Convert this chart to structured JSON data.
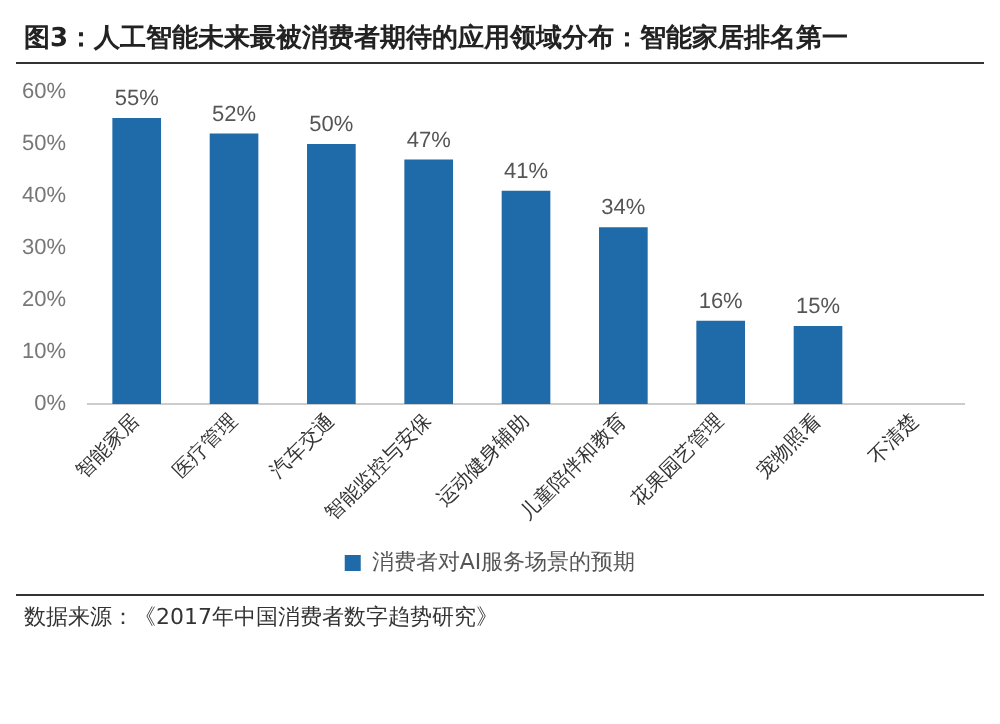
{
  "chart_data": {
    "type": "bar",
    "title": "图3：人工智能未来最被消费者期待的应用领域分布：智能家居排名第一",
    "categories": [
      "智能家居",
      "医疗管理",
      "汽车交通",
      "智能监控与安保",
      "运动健身辅助",
      "儿童陪伴和教育",
      "花果园艺管理",
      "宠物照看",
      "不清楚"
    ],
    "series": [
      {
        "name": "消费者对AI服务场景的预期",
        "color": "#1f6aa8",
        "values": [
          55,
          52,
          50,
          47,
          41,
          34,
          16,
          15,
          null
        ],
        "value_labels": [
          "55%",
          "52%",
          "50%",
          "47%",
          "41%",
          "34%",
          "16%",
          "15%",
          null
        ]
      }
    ],
    "ylim": [
      0,
      60
    ],
    "yticks": [
      {
        "value": 0,
        "label": "0%"
      },
      {
        "value": 10,
        "label": "10%"
      },
      {
        "value": 20,
        "label": "20%"
      },
      {
        "value": 30,
        "label": "30%"
      },
      {
        "value": 40,
        "label": "40%"
      },
      {
        "value": 50,
        "label": "50%"
      },
      {
        "value": 60,
        "label": "60%"
      }
    ],
    "grid": false,
    "legend": "bottom",
    "annotations": [
      "数据来源：《2017年中国消费者数字趋势研究》"
    ]
  }
}
